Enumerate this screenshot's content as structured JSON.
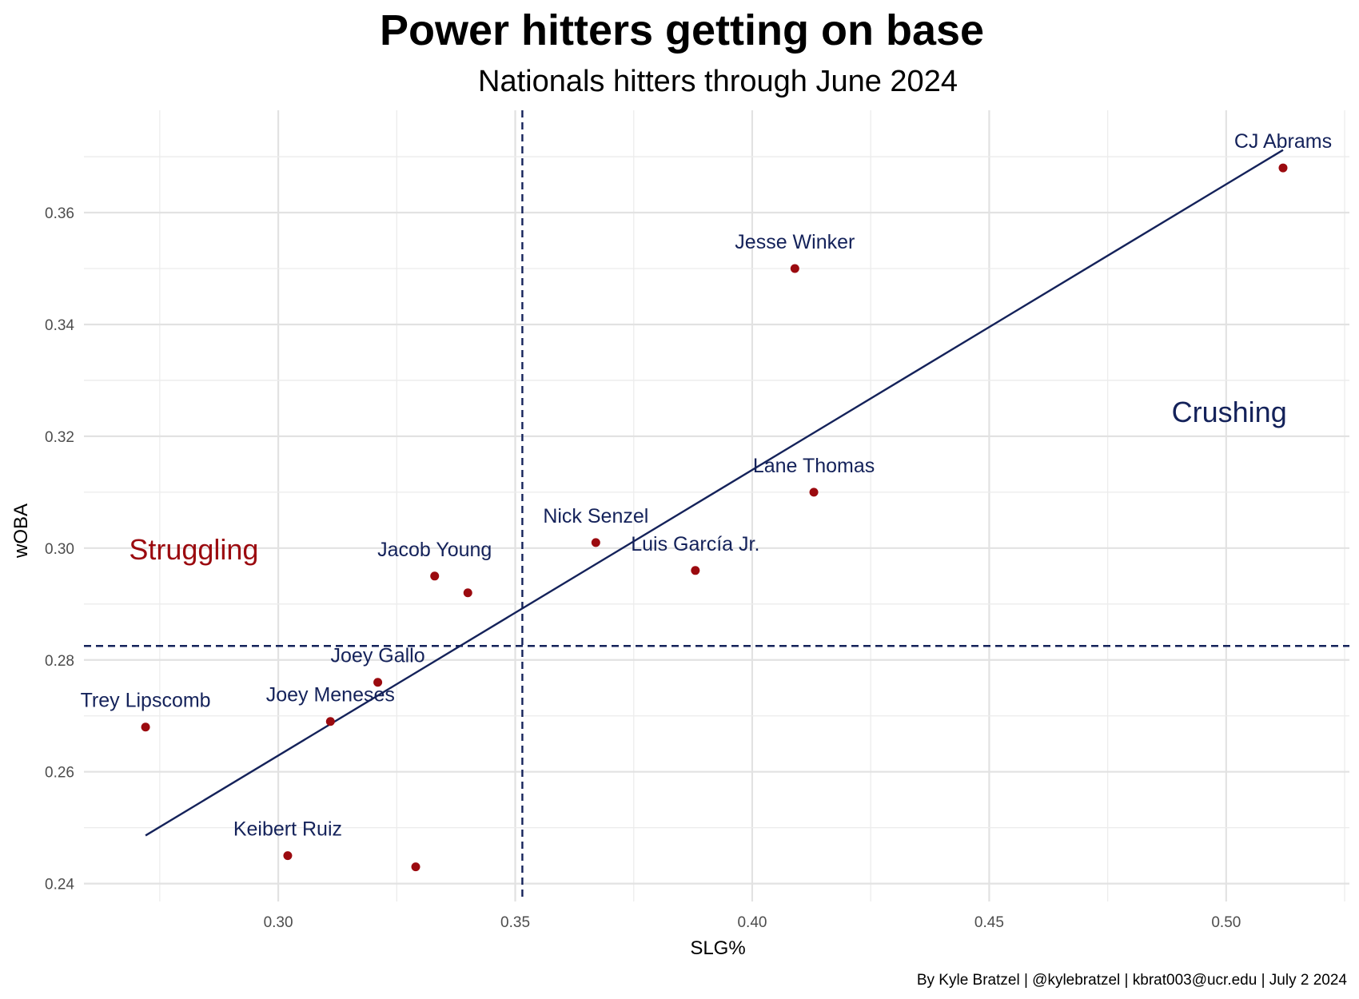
{
  "chart_data": {
    "type": "scatter",
    "title": "Power hitters getting on base",
    "subtitle": "Nationals hitters through June 2024",
    "xlabel": "SLG%",
    "ylabel": "wOBA",
    "caption": "By Kyle Bratzel | @kylebratzel | kbrat003@ucr.edu | July 2 2024",
    "xlim": [
      0.259,
      0.526
    ],
    "ylim": [
      0.2368,
      0.3783
    ],
    "x_ticks": [
      0.3,
      0.35,
      0.4,
      0.45,
      0.5
    ],
    "x_tick_labels": [
      "0.30",
      "0.35",
      "0.40",
      "0.45",
      "0.50"
    ],
    "y_ticks": [
      0.24,
      0.26,
      0.28,
      0.3,
      0.32,
      0.34,
      0.36
    ],
    "y_tick_labels": [
      "0.24",
      "0.26",
      "0.28",
      "0.30",
      "0.32",
      "0.34",
      "0.36"
    ],
    "grid": true,
    "point_color": "#9b0a0f",
    "label_color": "#14225a",
    "points": [
      {
        "x": 0.512,
        "y": 0.368,
        "label": "CJ Abrams"
      },
      {
        "x": 0.409,
        "y": 0.35,
        "label": "Jesse Winker"
      },
      {
        "x": 0.413,
        "y": 0.31,
        "label": "Lane Thomas"
      },
      {
        "x": 0.367,
        "y": 0.301,
        "label": "Nick Senzel"
      },
      {
        "x": 0.388,
        "y": 0.296,
        "label": "Luis García Jr."
      },
      {
        "x": 0.333,
        "y": 0.295,
        "label": "Jacob Young"
      },
      {
        "x": 0.34,
        "y": 0.292,
        "label": ""
      },
      {
        "x": 0.321,
        "y": 0.276,
        "label": "Joey Gallo"
      },
      {
        "x": 0.311,
        "y": 0.269,
        "label": "Joey Meneses"
      },
      {
        "x": 0.272,
        "y": 0.268,
        "label": "Trey Lipscomb"
      },
      {
        "x": 0.302,
        "y": 0.245,
        "label": "Keibert Ruiz"
      },
      {
        "x": 0.329,
        "y": 0.243,
        "label": ""
      }
    ],
    "trend_line": {
      "x": [
        0.272,
        0.512
      ],
      "y": [
        0.2486,
        0.3712
      ],
      "color": "#14225a"
    },
    "reference_lines": {
      "x": 0.3515,
      "y": 0.2825,
      "color": "#14225a",
      "style": "dashed"
    },
    "annotations": [
      {
        "text": "Struggling",
        "x": 0.2685,
        "y": 0.2998,
        "color": "#9b0a0f"
      },
      {
        "text": "Crushing",
        "x": 0.4885,
        "y": 0.3244,
        "color": "#14225a"
      }
    ]
  }
}
